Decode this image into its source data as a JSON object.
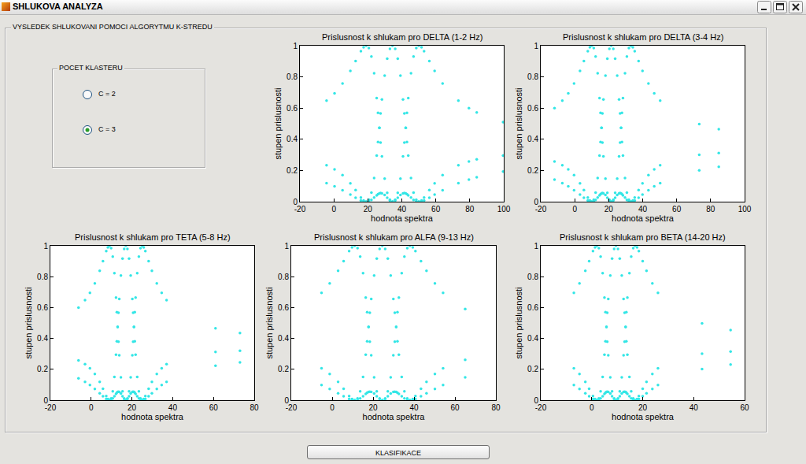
{
  "window": {
    "title": "SHLUKOVA ANALYZA",
    "panel_title": "VYSLEDEK SHLUKOVANI POMOCI ALGORYTMU K-STREDU",
    "cluster_box": {
      "title": "POCET KLASTERU",
      "options": [
        {
          "label": "C = 2",
          "selected": false
        },
        {
          "label": "C = 3",
          "selected": true
        }
      ]
    },
    "button": "KLASIFIKACE"
  },
  "chart_data": [
    {
      "type": "scatter",
      "title": "Prislusnost k shlukam pro DELTA (1-2 Hz)",
      "x_label": "hodnota spektra",
      "y_label": "stupen prislusnosti",
      "xlim": [
        -20,
        100
      ],
      "xticks": [
        -20,
        0,
        20,
        40,
        60,
        80,
        100
      ],
      "ylim": [
        0,
        1
      ],
      "yticks": [
        0,
        0.2,
        0.4,
        0.6,
        0.8,
        1
      ],
      "grid": false,
      "marker": "circle",
      "x": [
        -4.3,
        0.4,
        5.1,
        9.7,
        12.8,
        15.9,
        17.5,
        19,
        20.6,
        22.1,
        23.7,
        25.2,
        26.0,
        26.8,
        27.5,
        28.3,
        29.9,
        31.4,
        33.0,
        34.5,
        36.1,
        37.6,
        39.2,
        40.7,
        41.5,
        42.3,
        43.0,
        43.8,
        45.4,
        46.9,
        48.5,
        50,
        51.6,
        53.1,
        56.2,
        59.3,
        64.0,
        73.3,
        79.5,
        84.1,
        99.6
      ],
      "series": [
        {
          "color": "#33e6e6",
          "values": [
            0.648,
            0.695,
            0.757,
            0.838,
            0.901,
            0.965,
            0.99,
            1,
            0.985,
            0.93,
            0.823,
            0.664,
            0.57,
            0.474,
            0.379,
            0.291,
            0.148,
            0.057,
            0.012,
            0,
            0.008,
            0.025,
            0.043,
            0.053,
            0.055,
            0.053,
            0.048,
            0.041,
            0.026,
            0.011,
            0.003,
            0,
            0.002,
            0.008,
            0.025,
            0.045,
            0.073,
            0.119,
            0.142,
            0.157,
            0.193
          ]
        },
        {
          "color": "#33e6e6",
          "values": [
            0.233,
            0.207,
            0.17,
            0.118,
            0.074,
            0.027,
            0.008,
            0,
            0.012,
            0.058,
            0.151,
            0.295,
            0.382,
            0.474,
            0.566,
            0.655,
            0.808,
            0.917,
            0.98,
            1,
            0.98,
            0.917,
            0.808,
            0.655,
            0.566,
            0.474,
            0.382,
            0.295,
            0.151,
            0.058,
            0.012,
            0,
            0.008,
            0.027,
            0.074,
            0.118,
            0.17,
            0.233,
            0.258,
            0.271,
            0.296
          ]
        },
        {
          "color": "#33e6e6",
          "values": [
            0.119,
            0.098,
            0.073,
            0.045,
            0.025,
            0.008,
            0.002,
            0,
            0.003,
            0.011,
            0.026,
            0.041,
            0.048,
            0.053,
            0.055,
            0.053,
            0.043,
            0.025,
            0.008,
            0,
            0.012,
            0.057,
            0.148,
            0.291,
            0.379,
            0.474,
            0.57,
            0.664,
            0.823,
            0.93,
            0.985,
            1,
            0.99,
            0.965,
            0.901,
            0.838,
            0.757,
            0.648,
            0.6,
            0.572,
            0.51
          ]
        }
      ]
    },
    {
      "type": "scatter",
      "title": "Prislusnost k shlukam pro DELTA (3-4 Hz)",
      "x_label": "hodnota spektra",
      "y_label": "stupen prislusnosti",
      "xlim": [
        -20,
        100
      ],
      "xticks": [
        -20,
        0,
        20,
        40,
        60,
        80,
        100
      ],
      "ylim": [
        0,
        1
      ],
      "yticks": [
        0,
        0.2,
        0.4,
        0.6,
        0.8,
        1
      ],
      "grid": false,
      "marker": "circle",
      "x": [
        -11.9,
        -7.3,
        -3.8,
        -0.4,
        3.1,
        5.4,
        7.7,
        8.9,
        10,
        11.2,
        12.3,
        13.5,
        14.6,
        15.2,
        15.8,
        16.3,
        16.9,
        18.1,
        19.2,
        20.4,
        21.5,
        22.7,
        23.8,
        25.0,
        26.1,
        26.7,
        27.3,
        27.8,
        28.4,
        29.6,
        30.7,
        31.9,
        33,
        34.2,
        35.3,
        37.6,
        39.9,
        43.4,
        46.8,
        50.3,
        73.3,
        84.8
      ],
      "series": [
        {
          "color": "#33e6e6",
          "values": [
            0.6,
            0.648,
            0.695,
            0.757,
            0.838,
            0.901,
            0.965,
            0.99,
            1,
            0.985,
            0.93,
            0.823,
            0.664,
            0.57,
            0.474,
            0.379,
            0.291,
            0.148,
            0.057,
            0.012,
            0,
            0.008,
            0.025,
            0.043,
            0.053,
            0.055,
            0.053,
            0.048,
            0.041,
            0.026,
            0.011,
            0.003,
            0,
            0.002,
            0.008,
            0.025,
            0.045,
            0.073,
            0.098,
            0.119,
            0.201,
            0.223
          ]
        },
        {
          "color": "#33e6e6",
          "values": [
            0.258,
            0.233,
            0.207,
            0.17,
            0.118,
            0.074,
            0.027,
            0.008,
            0,
            0.012,
            0.058,
            0.151,
            0.295,
            0.382,
            0.474,
            0.566,
            0.655,
            0.808,
            0.917,
            0.98,
            1,
            0.98,
            0.917,
            0.808,
            0.655,
            0.566,
            0.474,
            0.382,
            0.295,
            0.151,
            0.058,
            0.012,
            0,
            0.008,
            0.027,
            0.074,
            0.118,
            0.17,
            0.207,
            0.233,
            0.301,
            0.312
          ]
        },
        {
          "color": "#33e6e6",
          "values": [
            0.142,
            0.119,
            0.098,
            0.073,
            0.045,
            0.025,
            0.008,
            0.002,
            0,
            0.003,
            0.011,
            0.026,
            0.041,
            0.048,
            0.053,
            0.055,
            0.053,
            0.043,
            0.025,
            0.008,
            0,
            0.012,
            0.057,
            0.148,
            0.291,
            0.379,
            0.474,
            0.57,
            0.664,
            0.823,
            0.93,
            0.985,
            1,
            0.99,
            0.965,
            0.901,
            0.838,
            0.757,
            0.695,
            0.648,
            0.498,
            0.465
          ]
        }
      ]
    },
    {
      "type": "scatter",
      "title": "Prislusnost k shlukam pro TETA (5-8 Hz)",
      "x_label": "hodnota spektra",
      "y_label": "stupen prislusnosti",
      "xlim": [
        -20,
        80
      ],
      "xticks": [
        -20,
        0,
        20,
        40,
        60,
        80
      ],
      "ylim": [
        0,
        1
      ],
      "yticks": [
        0,
        0.2,
        0.4,
        0.6,
        0.8,
        1
      ],
      "grid": false,
      "marker": "circle",
      "x": [
        -6.2,
        -3,
        -0.6,
        1.8,
        4.2,
        5.8,
        7.4,
        8.2,
        9,
        9.8,
        10.6,
        11.4,
        12.2,
        12.6,
        13,
        13.4,
        13.8,
        14.6,
        15.4,
        16.2,
        17,
        17.8,
        18.6,
        19.4,
        20.2,
        20.6,
        21,
        21.4,
        21.8,
        22.6,
        23.4,
        24.2,
        25,
        25.8,
        26.6,
        28.2,
        29.8,
        32.2,
        34.6,
        37,
        61,
        73
      ],
      "series": [
        {
          "color": "#33e6e6",
          "values": [
            0.6,
            0.648,
            0.695,
            0.757,
            0.838,
            0.901,
            0.965,
            0.99,
            1,
            0.985,
            0.93,
            0.823,
            0.664,
            0.57,
            0.474,
            0.379,
            0.291,
            0.148,
            0.057,
            0.012,
            0,
            0.008,
            0.025,
            0.043,
            0.053,
            0.055,
            0.053,
            0.048,
            0.041,
            0.026,
            0.011,
            0.003,
            0,
            0.002,
            0.008,
            0.025,
            0.045,
            0.073,
            0.098,
            0.119,
            0.223,
            0.245
          ]
        },
        {
          "color": "#33e6e6",
          "values": [
            0.258,
            0.233,
            0.207,
            0.17,
            0.118,
            0.074,
            0.027,
            0.008,
            0,
            0.012,
            0.058,
            0.151,
            0.295,
            0.382,
            0.474,
            0.566,
            0.655,
            0.808,
            0.917,
            0.98,
            1,
            0.98,
            0.917,
            0.808,
            0.655,
            0.566,
            0.474,
            0.382,
            0.295,
            0.151,
            0.058,
            0.012,
            0,
            0.008,
            0.027,
            0.074,
            0.118,
            0.17,
            0.207,
            0.233,
            0.312,
            0.32
          ]
        },
        {
          "color": "#33e6e6",
          "values": [
            0.142,
            0.119,
            0.098,
            0.073,
            0.045,
            0.025,
            0.008,
            0.002,
            0,
            0.003,
            0.011,
            0.026,
            0.041,
            0.048,
            0.053,
            0.055,
            0.053,
            0.043,
            0.025,
            0.008,
            0,
            0.012,
            0.057,
            0.148,
            0.291,
            0.379,
            0.474,
            0.57,
            0.664,
            0.823,
            0.93,
            0.985,
            1,
            0.99,
            0.965,
            0.901,
            0.838,
            0.757,
            0.695,
            0.648,
            0.465,
            0.435
          ]
        }
      ]
    },
    {
      "type": "scatter",
      "title": "Prislusnost k shlukam pro ALFA (9-13 Hz)",
      "x_label": "hodnota spektra",
      "y_label": "stupen prislusnosti",
      "xlim": [
        -20,
        80
      ],
      "xticks": [
        -20,
        0,
        20,
        40,
        60,
        80
      ],
      "ylim": [
        0,
        1
      ],
      "yticks": [
        0,
        0.2,
        0.4,
        0.6,
        0.8,
        1
      ],
      "grid": false,
      "marker": "circle",
      "x": [
        -5.2,
        -1.2,
        2.9,
        5.6,
        8.3,
        9.7,
        11,
        12.4,
        13.7,
        15.1,
        16.4,
        17.1,
        17.8,
        18.4,
        19.1,
        20.5,
        21.8,
        23.2,
        24.5,
        25.9,
        27.2,
        28.6,
        29.9,
        30.6,
        31.3,
        31.9,
        32.6,
        34.0,
        35.3,
        36.7,
        38,
        39.4,
        40.7,
        43.4,
        46.1,
        50.2,
        54.2,
        65
      ],
      "series": [
        {
          "color": "#33e6e6",
          "values": [
            0.695,
            0.757,
            0.838,
            0.901,
            0.965,
            0.99,
            1,
            0.985,
            0.93,
            0.823,
            0.664,
            0.57,
            0.474,
            0.379,
            0.291,
            0.148,
            0.057,
            0.012,
            0,
            0.008,
            0.025,
            0.043,
            0.053,
            0.055,
            0.053,
            0.048,
            0.041,
            0.026,
            0.011,
            0.003,
            0,
            0.002,
            0.008,
            0.025,
            0.045,
            0.073,
            0.098,
            0.148
          ]
        },
        {
          "color": "#33e6e6",
          "values": [
            0.207,
            0.17,
            0.118,
            0.074,
            0.027,
            0.008,
            0,
            0.012,
            0.058,
            0.151,
            0.295,
            0.382,
            0.474,
            0.566,
            0.655,
            0.808,
            0.917,
            0.98,
            1,
            0.98,
            0.917,
            0.808,
            0.655,
            0.566,
            0.474,
            0.382,
            0.295,
            0.151,
            0.058,
            0.012,
            0,
            0.008,
            0.027,
            0.074,
            0.118,
            0.17,
            0.207,
            0.262
          ]
        },
        {
          "color": "#33e6e6",
          "values": [
            0.098,
            0.073,
            0.045,
            0.025,
            0.008,
            0.002,
            0,
            0.003,
            0.011,
            0.026,
            0.041,
            0.048,
            0.053,
            0.055,
            0.053,
            0.043,
            0.025,
            0.008,
            0,
            0.012,
            0.057,
            0.148,
            0.291,
            0.379,
            0.474,
            0.57,
            0.664,
            0.823,
            0.93,
            0.985,
            1,
            0.99,
            0.965,
            0.901,
            0.838,
            0.757,
            0.695,
            0.59
          ]
        }
      ]
    },
    {
      "type": "scatter",
      "title": "Prislusnost k shlukam pro BETA (14-20 Hz)",
      "x_label": "hodnota spektra",
      "y_label": "stupen prislusnosti",
      "xlim": [
        -20,
        60
      ],
      "xticks": [
        -20,
        0,
        20,
        40,
        60
      ],
      "ylim": [
        0,
        1
      ],
      "yticks": [
        0,
        0.2,
        0.4,
        0.6,
        0.8,
        1
      ],
      "grid": false,
      "marker": "circle",
      "x": [
        -7,
        -4.8,
        -2.5,
        -1,
        0.5,
        1.3,
        2,
        2.8,
        3.5,
        4.3,
        5,
        5.4,
        5.8,
        6.1,
        6.5,
        7.3,
        8,
        8.8,
        9.5,
        10.3,
        11,
        11.8,
        12.5,
        12.9,
        13.3,
        13.6,
        14,
        14.8,
        15.5,
        16.3,
        17,
        17.8,
        18.5,
        20,
        21.5,
        23.8,
        26,
        43.3,
        54.5
      ],
      "series": [
        {
          "color": "#33e6e6",
          "values": [
            0.695,
            0.757,
            0.838,
            0.901,
            0.965,
            0.99,
            1,
            0.985,
            0.93,
            0.823,
            0.664,
            0.57,
            0.474,
            0.379,
            0.291,
            0.148,
            0.057,
            0.012,
            0,
            0.008,
            0.025,
            0.043,
            0.053,
            0.055,
            0.053,
            0.048,
            0.041,
            0.026,
            0.011,
            0.003,
            0,
            0.002,
            0.008,
            0.025,
            0.045,
            0.073,
            0.098,
            0.201,
            0.231
          ]
        },
        {
          "color": "#33e6e6",
          "values": [
            0.207,
            0.17,
            0.118,
            0.074,
            0.027,
            0.008,
            0,
            0.012,
            0.058,
            0.151,
            0.295,
            0.382,
            0.474,
            0.566,
            0.655,
            0.808,
            0.917,
            0.98,
            1,
            0.98,
            0.917,
            0.808,
            0.655,
            0.566,
            0.474,
            0.382,
            0.295,
            0.151,
            0.058,
            0.012,
            0,
            0.008,
            0.027,
            0.074,
            0.118,
            0.17,
            0.207,
            0.301,
            0.315
          ]
        },
        {
          "color": "#33e6e6",
          "values": [
            0.098,
            0.073,
            0.045,
            0.025,
            0.008,
            0.002,
            0,
            0.003,
            0.011,
            0.026,
            0.041,
            0.048,
            0.053,
            0.055,
            0.053,
            0.043,
            0.025,
            0.008,
            0,
            0.012,
            0.057,
            0.148,
            0.291,
            0.379,
            0.474,
            0.57,
            0.664,
            0.823,
            0.93,
            0.985,
            1,
            0.99,
            0.965,
            0.901,
            0.838,
            0.757,
            0.695,
            0.498,
            0.454
          ]
        }
      ]
    }
  ]
}
